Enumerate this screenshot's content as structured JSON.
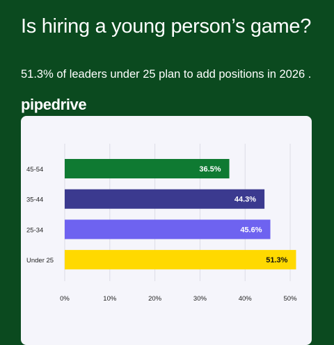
{
  "header": {
    "title": "Is hiring a young person’s game?",
    "subtitle": "51.3% of leaders under 25 plan to add positions in 2026 .",
    "brand": "pipedrive"
  },
  "colors": {
    "background": "#0b4a1f",
    "card": "#f5f5fb",
    "grid": "#dcdce6",
    "tick_text": "#222222"
  },
  "chart_data": {
    "type": "bar",
    "orientation": "horizontal",
    "title": "",
    "xlabel": "",
    "ylabel": "",
    "categories": [
      "45-54",
      "35-44",
      "25-34",
      "Under 25"
    ],
    "values": [
      36.5,
      44.3,
      45.6,
      51.3
    ],
    "value_labels": [
      "36.5%",
      "44.3%",
      "45.6%",
      "51.3%"
    ],
    "bar_colors": [
      "#0f7a32",
      "#3b3a8f",
      "#6e63f0",
      "#ffd900"
    ],
    "label_colors": [
      "#ffffff",
      "#ffffff",
      "#ffffff",
      "#111111"
    ],
    "xlim": [
      0,
      52
    ],
    "xticks": [
      0,
      10,
      20,
      30,
      40,
      50
    ],
    "xtick_labels": [
      "0%",
      "10%",
      "20%",
      "30%",
      "40%",
      "50%"
    ],
    "grid": true,
    "legend": "none"
  }
}
